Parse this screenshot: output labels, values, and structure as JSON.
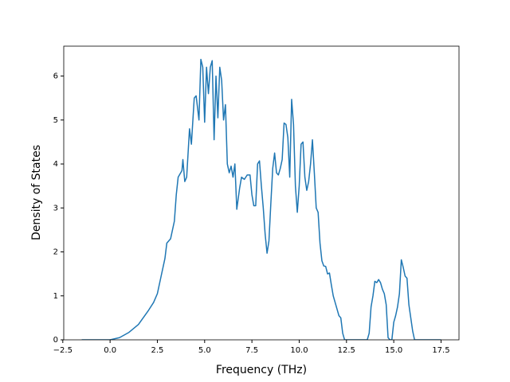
{
  "chart_data": {
    "type": "line",
    "xlabel": "Frequency (THz)",
    "ylabel": "Density of States",
    "xlim": [
      -2.45,
      18.45
    ],
    "ylim": [
      0,
      6.68
    ],
    "xticks": [
      {
        "value": -2.5,
        "label": "−2.5"
      },
      {
        "value": 0,
        "label": "0.0"
      },
      {
        "value": 2.5,
        "label": "2.5"
      },
      {
        "value": 5,
        "label": "5.0"
      },
      {
        "value": 7.5,
        "label": "7.5"
      },
      {
        "value": 10,
        "label": "10.0"
      },
      {
        "value": 12.5,
        "label": "12.5"
      },
      {
        "value": 15,
        "label": "15.0"
      },
      {
        "value": 17.5,
        "label": "17.5"
      }
    ],
    "yticks": [
      0,
      1,
      2,
      3,
      4,
      5,
      6
    ],
    "series": [
      {
        "color": "#1f77b4",
        "x": [
          -1.5,
          0,
          0.5,
          1.0,
          1.5,
          2.0,
          2.3,
          2.5,
          2.7,
          2.9,
          3.0,
          3.2,
          3.4,
          3.5,
          3.6,
          3.8,
          3.85,
          3.95,
          4.05,
          4.2,
          4.3,
          4.45,
          4.55,
          4.7,
          4.8,
          4.9,
          5.0,
          5.1,
          5.2,
          5.3,
          5.4,
          5.5,
          5.6,
          5.7,
          5.8,
          5.9,
          6.0,
          6.1,
          6.2,
          6.3,
          6.4,
          6.5,
          6.6,
          6.7,
          6.85,
          6.95,
          7.1,
          7.25,
          7.4,
          7.5,
          7.6,
          7.7,
          7.8,
          7.9,
          8.0,
          8.1,
          8.2,
          8.3,
          8.4,
          8.5,
          8.6,
          8.7,
          8.8,
          8.9,
          9.0,
          9.1,
          9.2,
          9.3,
          9.4,
          9.5,
          9.6,
          9.7,
          9.8,
          9.9,
          10.0,
          10.1,
          10.2,
          10.3,
          10.4,
          10.5,
          10.6,
          10.7,
          10.8,
          10.9,
          11.0,
          11.1,
          11.2,
          11.3,
          11.4,
          11.5,
          11.6,
          11.7,
          11.8,
          11.9,
          12.0,
          12.1,
          12.2,
          12.3,
          12.4,
          13.6,
          13.7,
          13.8,
          13.9,
          14.0,
          14.1,
          14.2,
          14.3,
          14.4,
          14.5,
          14.6,
          14.7,
          14.8,
          14.9,
          15.0,
          15.1,
          15.2,
          15.3,
          15.4,
          15.5,
          15.6,
          15.7,
          15.8,
          15.9,
          16.0,
          16.1,
          17.5
        ],
        "values": [
          0,
          0,
          0.05,
          0.17,
          0.35,
          0.65,
          0.85,
          1.05,
          1.45,
          1.85,
          2.2,
          2.3,
          2.7,
          3.3,
          3.7,
          3.85,
          4.1,
          3.6,
          3.7,
          4.8,
          4.45,
          5.5,
          5.55,
          5.0,
          6.38,
          6.2,
          4.95,
          6.2,
          5.6,
          6.2,
          6.35,
          4.55,
          6.0,
          5.05,
          6.2,
          5.9,
          5.0,
          5.35,
          4.0,
          3.8,
          3.95,
          3.7,
          4.0,
          2.97,
          3.45,
          3.7,
          3.65,
          3.75,
          3.75,
          3.3,
          3.05,
          3.05,
          4.0,
          4.07,
          3.5,
          3.0,
          2.4,
          1.97,
          2.25,
          3.1,
          3.9,
          4.25,
          3.8,
          3.75,
          3.9,
          4.1,
          4.93,
          4.9,
          4.6,
          3.7,
          5.47,
          4.9,
          3.5,
          2.9,
          3.5,
          4.45,
          4.5,
          3.7,
          3.4,
          3.6,
          4.0,
          4.55,
          3.8,
          3.0,
          2.9,
          2.2,
          1.8,
          1.68,
          1.67,
          1.5,
          1.52,
          1.25,
          1.0,
          0.85,
          0.7,
          0.55,
          0.5,
          0.15,
          0,
          0,
          0.15,
          0.75,
          1.0,
          1.33,
          1.3,
          1.37,
          1.3,
          1.15,
          1.05,
          0.8,
          0.05,
          0,
          0,
          0.4,
          0.55,
          0.75,
          1.05,
          1.82,
          1.65,
          1.45,
          1.4,
          0.8,
          0.5,
          0.2,
          0,
          0
        ]
      }
    ]
  }
}
